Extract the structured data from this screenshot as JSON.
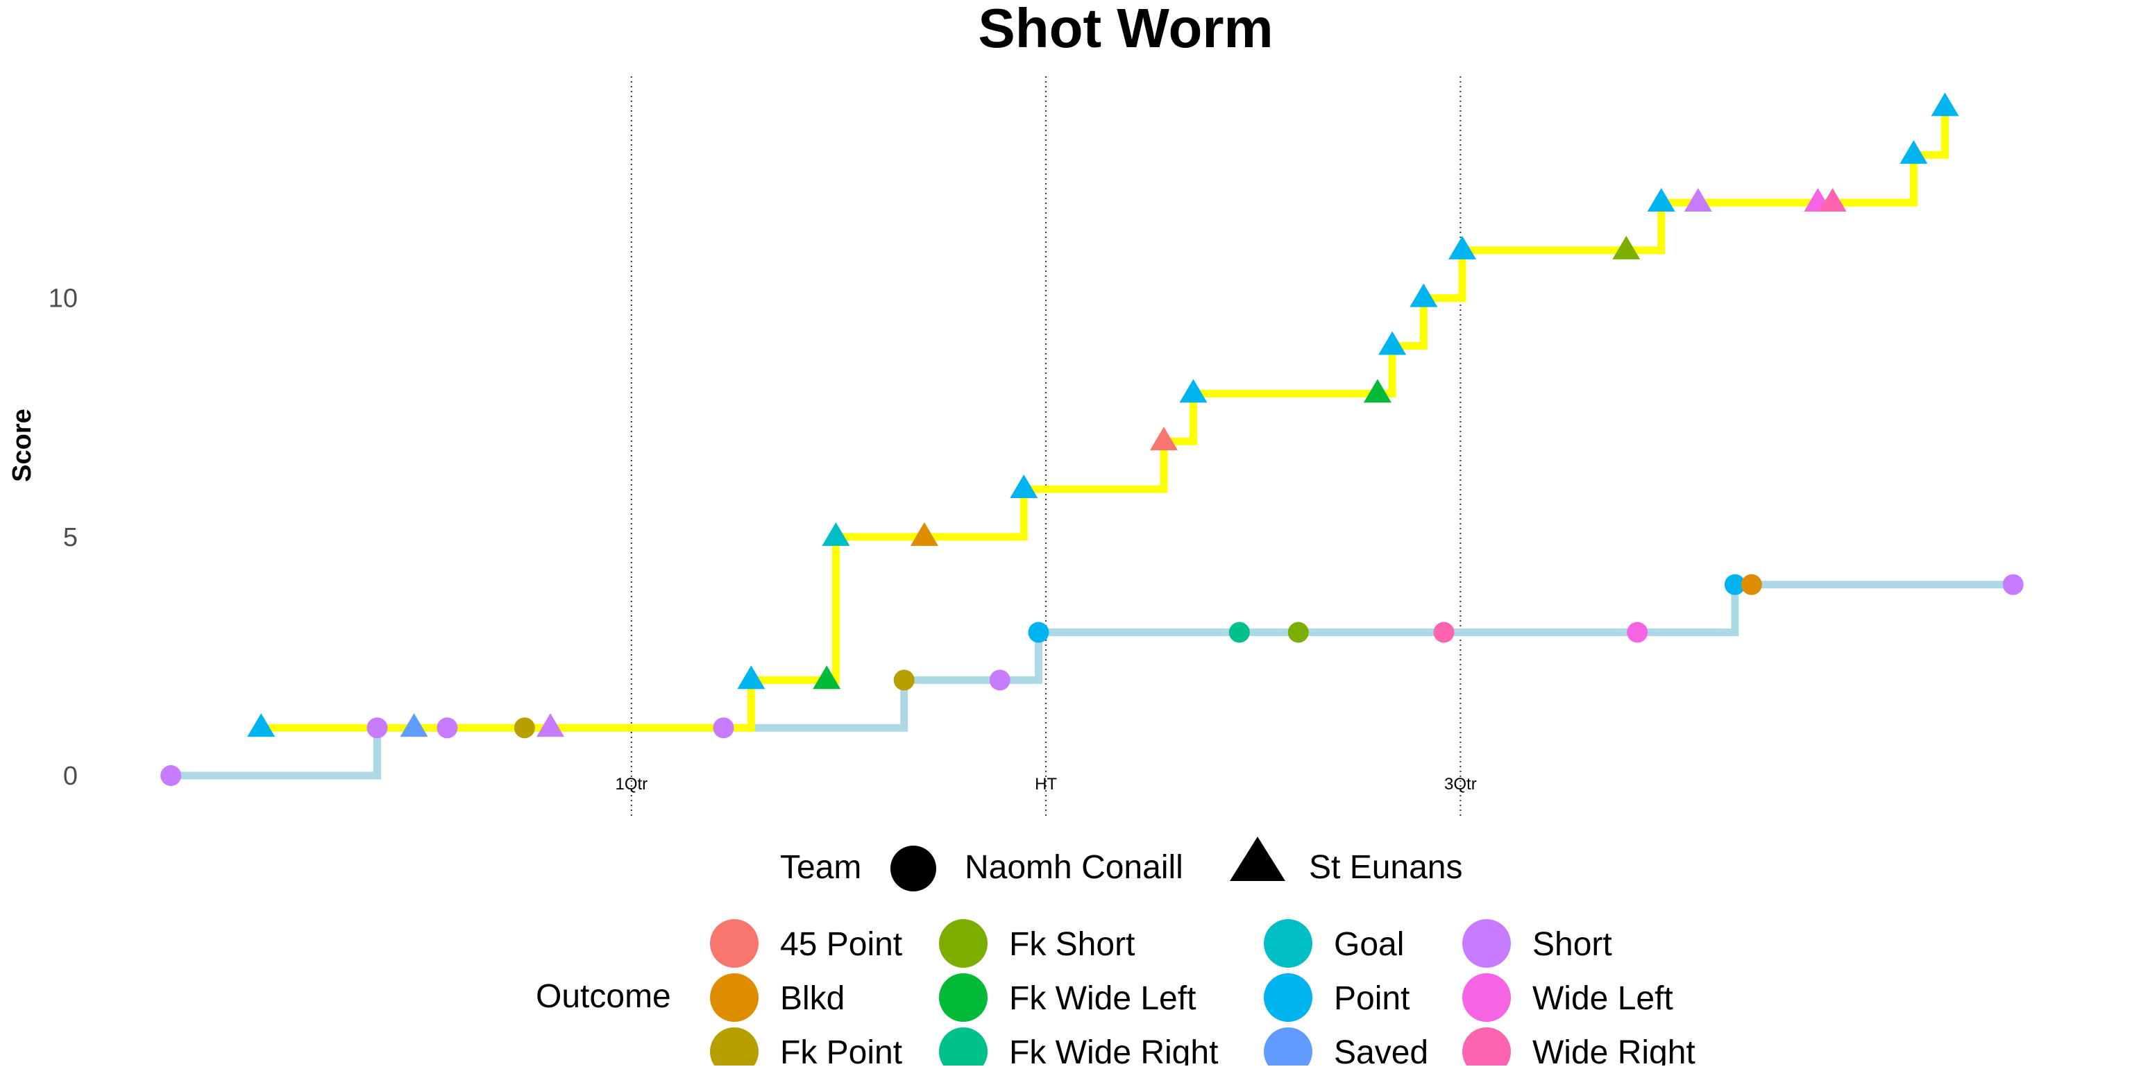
{
  "chart_data": {
    "type": "line",
    "subtype": "step",
    "title": "Shot Worm",
    "xlabel": "",
    "ylabel": "Score",
    "grid": false,
    "ylim": [
      -0.9,
      14.5
    ],
    "xlim": [
      -4,
      106
    ],
    "y_ticks": [
      {
        "value": 0,
        "label": "0"
      },
      {
        "value": 5,
        "label": "5"
      },
      {
        "value": 10,
        "label": "10"
      }
    ],
    "vlines": [
      {
        "x": 25,
        "label": "1Qtr"
      },
      {
        "x": 47.5,
        "label": "HT"
      },
      {
        "x": 70,
        "label": "3Qtr"
      }
    ],
    "legend": {
      "placement": "bottom",
      "team_title": "Team",
      "outcome_title": "Outcome",
      "team_entries": [
        {
          "name": "Naomh Conaill",
          "shape": "circle"
        },
        {
          "name": "St Eunans",
          "shape": "triangle"
        }
      ],
      "outcome_columns": [
        [
          "45 Point",
          "Blkd",
          "Fk Point"
        ],
        [
          "Fk Short",
          "Fk Wide Left",
          "Fk Wide Right"
        ],
        [
          "Goal",
          "Point",
          "Saved"
        ],
        [
          "Short",
          "Wide Left",
          "Wide Right"
        ]
      ]
    },
    "outcome_colors": {
      "45 Point": "#F8766D",
      "Blkd": "#DE8C00",
      "Fk Point": "#B79F00",
      "Fk Short": "#7CAE00",
      "Fk Wide Left": "#00BA38",
      "Fk Wide Right": "#00C08B",
      "Goal": "#00BFC4",
      "Point": "#00B4F0",
      "Saved": "#619CFF",
      "Short": "#C77CFF",
      "Wide Left": "#F564E3",
      "Wide Right": "#FF64B0"
    },
    "series": [
      {
        "name": "Naomh Conaill",
        "shape": "circle",
        "line_color": "#ADD8E6",
        "points": [
          {
            "x": 0,
            "y": 0,
            "outcome": "Short"
          },
          {
            "x": 11.2,
            "y": 1,
            "outcome": "Short"
          },
          {
            "x": 15,
            "y": 1,
            "outcome": "Short"
          },
          {
            "x": 19.2,
            "y": 1,
            "outcome": "Fk Point"
          },
          {
            "x": 30,
            "y": 1,
            "outcome": "Short"
          },
          {
            "x": 39.8,
            "y": 2,
            "outcome": "Fk Point"
          },
          {
            "x": 45,
            "y": 2,
            "outcome": "Short"
          },
          {
            "x": 47.1,
            "y": 3,
            "outcome": "Point"
          },
          {
            "x": 58,
            "y": 3,
            "outcome": "Fk Wide Right"
          },
          {
            "x": 61.2,
            "y": 3,
            "outcome": "Fk Short"
          },
          {
            "x": 69.1,
            "y": 3,
            "outcome": "Wide Right"
          },
          {
            "x": 79.6,
            "y": 3,
            "outcome": "Wide Left"
          },
          {
            "x": 84.9,
            "y": 4,
            "outcome": "Point"
          },
          {
            "x": 85.8,
            "y": 4,
            "outcome": "Blkd"
          },
          {
            "x": 100,
            "y": 4,
            "outcome": "Short"
          }
        ]
      },
      {
        "name": "St Eunans",
        "shape": "triangle",
        "line_color": "#FFFF00",
        "points": [
          {
            "x": 4.9,
            "y": 1,
            "outcome": "Point"
          },
          {
            "x": 13.2,
            "y": 1,
            "outcome": "Saved"
          },
          {
            "x": 20.6,
            "y": 1,
            "outcome": "Short"
          },
          {
            "x": 31.5,
            "y": 2,
            "outcome": "Point"
          },
          {
            "x": 35.6,
            "y": 2,
            "outcome": "Fk Wide Left"
          },
          {
            "x": 36.1,
            "y": 5,
            "outcome": "Goal"
          },
          {
            "x": 40.9,
            "y": 5,
            "outcome": "Blkd"
          },
          {
            "x": 46.3,
            "y": 6,
            "outcome": "Point"
          },
          {
            "x": 53.9,
            "y": 7,
            "outcome": "45 Point"
          },
          {
            "x": 55.5,
            "y": 8,
            "outcome": "Point"
          },
          {
            "x": 65.5,
            "y": 8,
            "outcome": "Fk Wide Left"
          },
          {
            "x": 66.3,
            "y": 9,
            "outcome": "Point"
          },
          {
            "x": 68,
            "y": 10,
            "outcome": "Point"
          },
          {
            "x": 70.1,
            "y": 11,
            "outcome": "Point"
          },
          {
            "x": 79,
            "y": 11,
            "outcome": "Fk Short"
          },
          {
            "x": 80.9,
            "y": 12,
            "outcome": "Point"
          },
          {
            "x": 82.9,
            "y": 12,
            "outcome": "Short"
          },
          {
            "x": 89.4,
            "y": 12,
            "outcome": "Wide Left"
          },
          {
            "x": 90.2,
            "y": 12,
            "outcome": "Wide Right"
          },
          {
            "x": 94.6,
            "y": 13,
            "outcome": "Point"
          },
          {
            "x": 96.3,
            "y": 14,
            "outcome": "Point"
          }
        ]
      }
    ]
  }
}
